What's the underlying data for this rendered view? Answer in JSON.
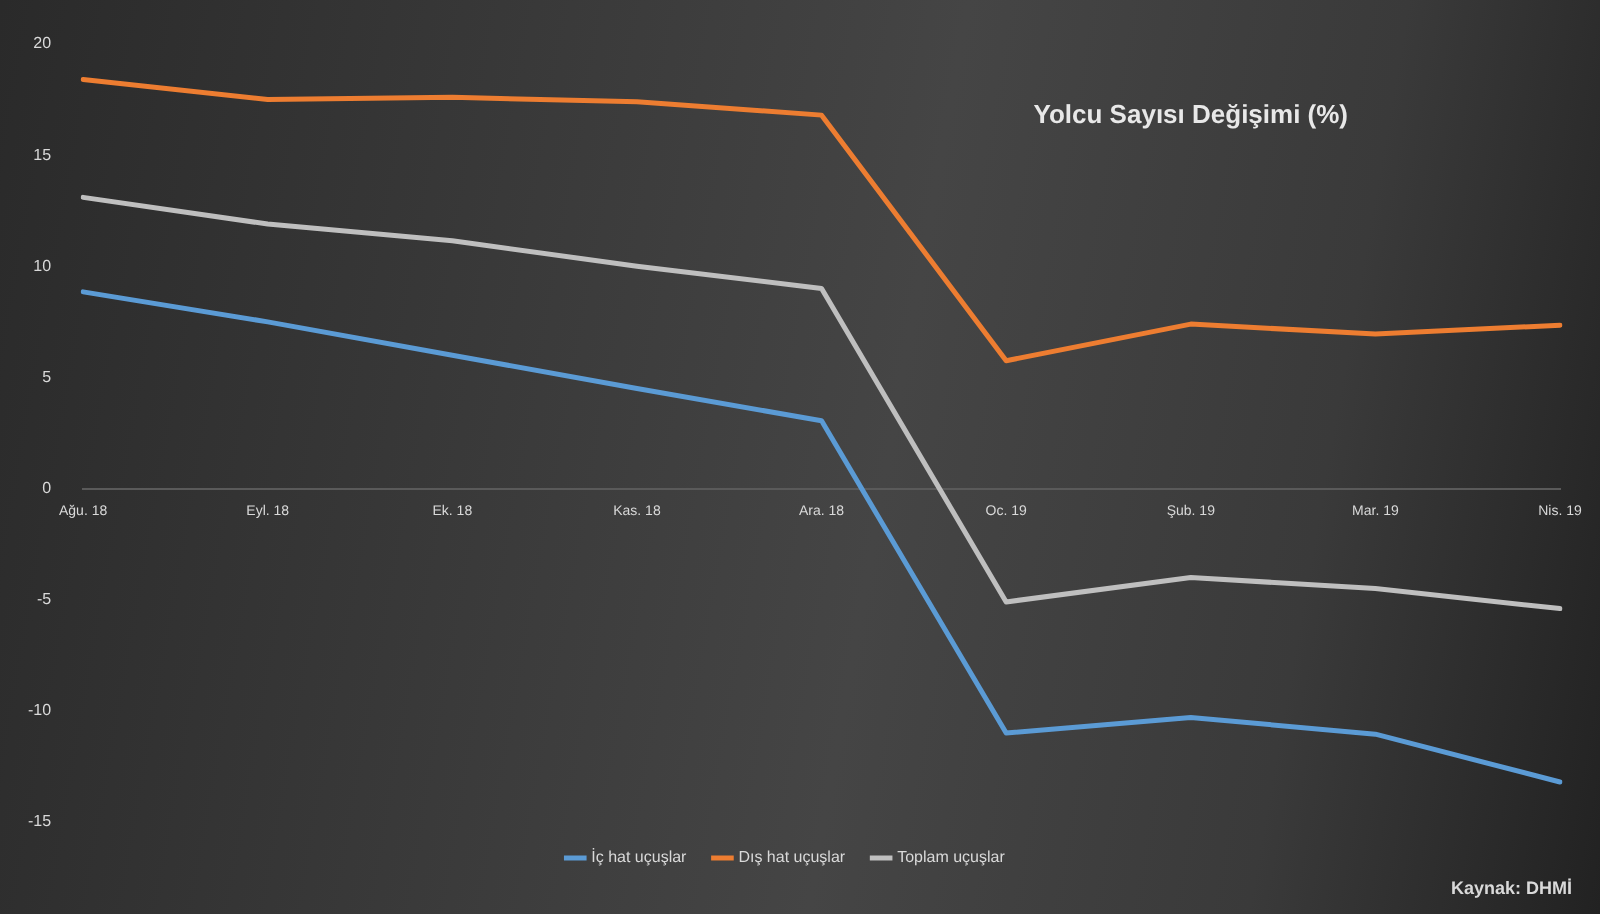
{
  "chart_data": {
    "type": "line",
    "title": "Yolcu Sayısı Değişimi (%)",
    "categories": [
      "Ağu. 18",
      "Eyl. 18",
      "Ek. 18",
      "Kas. 18",
      "Ara. 18",
      "Oc. 19",
      "Şub. 19",
      "Mar. 19",
      "Nis. 19"
    ],
    "series": [
      {
        "name": "İç hat uçuşlar",
        "color": "#5b9bd5",
        "values": [
          8.85,
          7.5,
          6.0,
          4.5,
          3.05,
          -11.0,
          -10.3,
          -11.05,
          -13.2
        ]
      },
      {
        "name": "Dış hat uçuşlar",
        "color": "#ed7d31",
        "values": [
          18.4,
          17.5,
          17.6,
          17.4,
          16.8,
          5.75,
          7.4,
          6.95,
          7.35
        ]
      },
      {
        "name": "Toplam uçuşlar",
        "color": "#bfbfbf",
        "values": [
          13.1,
          11.9,
          11.15,
          10.0,
          9.0,
          -5.1,
          -4.0,
          -4.5,
          -5.4
        ]
      }
    ],
    "ylim": [
      -15,
      20
    ],
    "yticks": [
      -15,
      -10,
      -5,
      0,
      5,
      10,
      15,
      20
    ],
    "grid": false,
    "legend": "bottom",
    "marker": "none",
    "line_style": "solid",
    "annotations": [
      "Kaynak: DHMİ"
    ]
  }
}
